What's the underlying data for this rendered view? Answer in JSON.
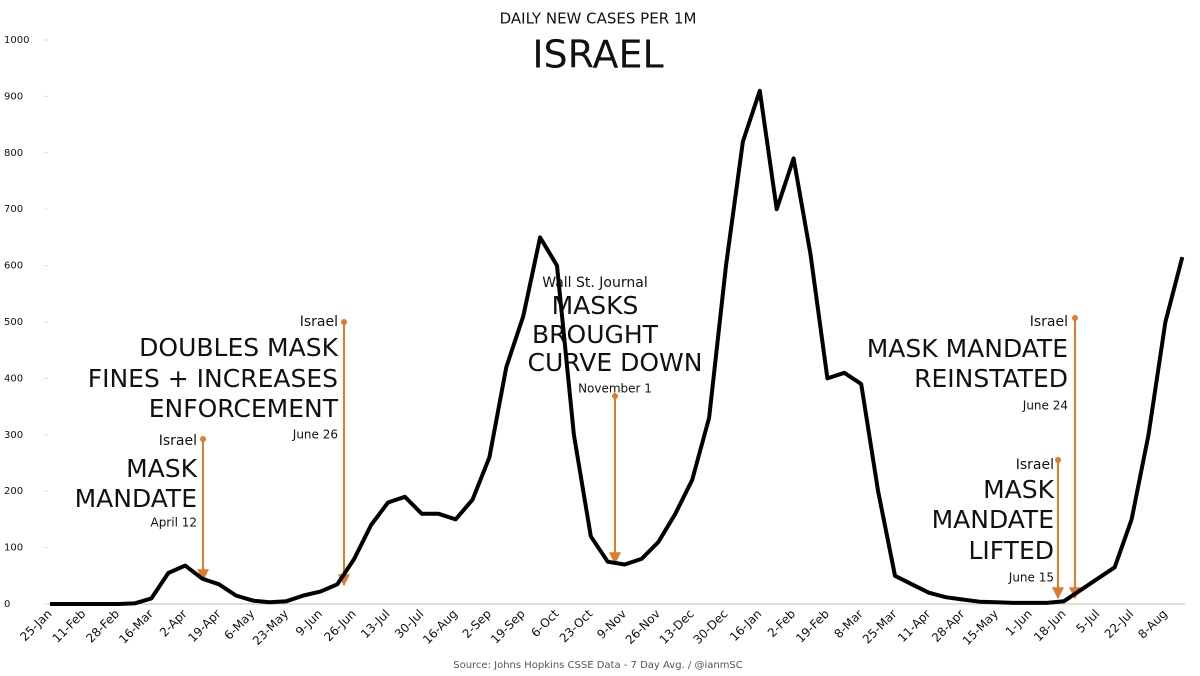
{
  "chart_data": {
    "type": "line",
    "title": "DAILY NEW CASES PER 1M",
    "subtitle": "ISRAEL",
    "source": "Source: Johns Hopkins CSSE Data - 7 Day Avg. / @ianmSC",
    "categories": [
      "25-Jan",
      null,
      "11-Feb",
      null,
      "28-Feb",
      null,
      "16-Mar",
      null,
      "2-Apr",
      null,
      "19-Apr",
      null,
      "6-May",
      null,
      "23-May",
      null,
      "9-Jun",
      null,
      "26-Jun",
      null,
      "13-Jul",
      null,
      "30-Jul",
      null,
      "16-Aug",
      null,
      "2-Sep",
      null,
      "19-Sep",
      null,
      "6-Oct",
      null,
      "23-Oct",
      null,
      "9-Nov",
      null,
      "26-Nov",
      null,
      "13-Dec",
      null,
      "30-Dec",
      null,
      "16-Jan",
      null,
      "2-Feb",
      null,
      "19-Feb",
      null,
      "8-Mar",
      null,
      "25-Mar",
      null,
      "11-Apr",
      null,
      "28-Apr",
      null,
      "15-May",
      null,
      "1-Jun",
      null,
      "18-Jun",
      null,
      "5-Jul",
      null,
      "22-Jul",
      null,
      "8-Aug",
      null
    ],
    "series": [
      {
        "name": "Israel",
        "color": "#000000",
        "values": [
          0,
          0,
          0,
          0,
          0,
          1,
          10,
          55,
          68,
          45,
          35,
          15,
          6,
          3,
          5,
          15,
          22,
          35,
          80,
          140,
          180,
          190,
          160,
          160,
          150,
          185,
          260,
          420,
          510,
          650,
          600,
          300,
          120,
          75,
          70,
          80,
          110,
          160,
          220,
          330,
          600,
          820,
          910,
          700,
          790,
          620,
          400,
          410,
          390,
          200,
          50,
          35,
          20,
          12,
          8,
          4,
          3,
          2,
          2,
          2,
          5,
          25,
          45,
          65,
          150,
          300,
          500,
          615
        ]
      }
    ],
    "ylim": [
      0,
      1000
    ],
    "yticks": [
      0,
      100,
      200,
      300,
      400,
      500,
      600,
      700,
      800,
      900,
      1000
    ],
    "grid": false,
    "annotations": [
      {
        "lines": [
          "Israel",
          "MASK",
          "MANDATE",
          "April 12"
        ]
      },
      {
        "lines": [
          "Israel",
          "DOUBLES MASK",
          "FINES + INCREASES",
          "ENFORCEMENT",
          "June 26"
        ]
      },
      {
        "lines": [
          "Wall St. Journal",
          "MASKS",
          "BROUGHT",
          "CURVE DOWN",
          "November 1"
        ]
      },
      {
        "lines": [
          "Israel",
          "MASK MANDATE",
          "REINSTATED",
          "June 24"
        ]
      },
      {
        "lines": [
          "Israel",
          "MASK",
          "MANDATE",
          "LIFTED",
          "June 15"
        ]
      }
    ]
  }
}
